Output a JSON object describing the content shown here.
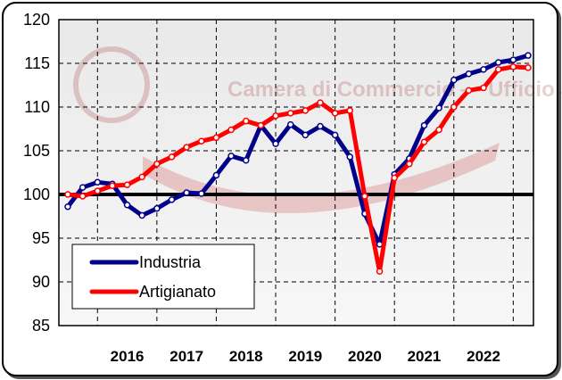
{
  "chart_data": {
    "type": "line",
    "title": "",
    "xlabel": "",
    "ylabel": "",
    "ylim": [
      85,
      120
    ],
    "yticks": [
      85,
      90,
      95,
      100,
      105,
      110,
      115,
      120
    ],
    "xlim": [
      2015.0,
      2022.75
    ],
    "xtick_labels": [
      "2016",
      "2017",
      "2018",
      "2019",
      "2020",
      "2021",
      "2022"
    ],
    "reference_line": 100,
    "grid": "dashed",
    "legend_position": "bottom-left",
    "watermark": "Camera di Commercio — Ufficio Statistica e Studi",
    "series": [
      {
        "name": "Industria",
        "color": "#00008b",
        "x": [
          2015.0,
          2015.25,
          2015.5,
          2015.75,
          2016.0,
          2016.25,
          2016.5,
          2016.75,
          2017.0,
          2017.25,
          2017.5,
          2017.75,
          2018.0,
          2018.25,
          2018.5,
          2018.75,
          2019.0,
          2019.25,
          2019.5,
          2019.75,
          2020.0,
          2020.25,
          2020.5,
          2020.75,
          2021.0,
          2021.25,
          2021.5,
          2021.75,
          2022.0,
          2022.25,
          2022.5,
          2022.75
        ],
        "y": [
          98.6,
          100.8,
          101.4,
          101.2,
          98.8,
          97.6,
          98.4,
          99.4,
          100.2,
          100.1,
          102.2,
          104.4,
          103.9,
          107.9,
          105.8,
          108.0,
          106.8,
          107.8,
          106.8,
          104.3,
          97.8,
          94.3,
          102.3,
          104.1,
          107.9,
          109.9,
          113.1,
          113.8,
          114.3,
          115.1,
          115.4,
          115.9
        ]
      },
      {
        "name": "Artigianato",
        "color": "#ff0000",
        "x": [
          2015.0,
          2015.25,
          2015.5,
          2015.75,
          2016.0,
          2016.25,
          2016.5,
          2016.75,
          2017.0,
          2017.25,
          2017.5,
          2017.75,
          2018.0,
          2018.25,
          2018.5,
          2018.75,
          2019.0,
          2019.25,
          2019.5,
          2019.75,
          2020.0,
          2020.25,
          2020.5,
          2020.75,
          2021.0,
          2021.25,
          2021.5,
          2021.75,
          2022.0,
          2022.25,
          2022.5,
          2022.75
        ],
        "y": [
          100.0,
          99.8,
          100.4,
          101.0,
          101.1,
          102.0,
          103.5,
          104.3,
          105.4,
          106.1,
          106.5,
          107.4,
          108.4,
          107.9,
          109.0,
          109.3,
          109.6,
          110.5,
          109.3,
          109.6,
          99.8,
          91.2,
          101.9,
          103.5,
          106.0,
          107.4,
          110.0,
          111.9,
          112.2,
          114.3,
          114.6,
          114.5
        ]
      }
    ]
  }
}
